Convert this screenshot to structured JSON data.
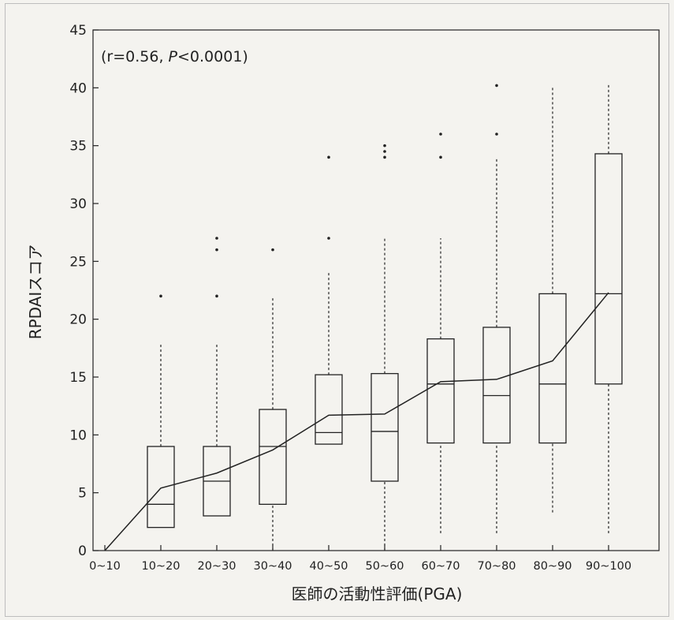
{
  "chart_data": {
    "type": "box",
    "xlabel": "医師の活動性評価(PGA)",
    "ylabel": "RPDAIスコア",
    "ylim": [
      0,
      45
    ],
    "yticks": [
      0,
      5,
      10,
      15,
      20,
      25,
      30,
      35,
      40,
      45
    ],
    "annotation": {
      "prefix": "(r=0.56, ",
      "p_symbol": "P",
      "suffix": "<0.0001)"
    },
    "categories": [
      "0~10",
      "10~20",
      "20~30",
      "30~40",
      "40~50",
      "50~60",
      "60~70",
      "70~80",
      "80~90",
      "90~100"
    ],
    "boxes": [
      null,
      {
        "whisker_low": 2,
        "q1": 2,
        "median": 4,
        "q3": 9,
        "whisker_high": 18,
        "outliers": [
          22
        ]
      },
      {
        "whisker_low": 3,
        "q1": 3,
        "median": 6,
        "q3": 9,
        "whisker_high": 18,
        "outliers": [
          22,
          26,
          27
        ]
      },
      {
        "whisker_low": 0,
        "q1": 4,
        "median": 9,
        "q3": 12.2,
        "whisker_high": 22,
        "outliers": [
          26
        ]
      },
      {
        "whisker_low": 9.2,
        "q1": 9.2,
        "median": 10.2,
        "q3": 15.2,
        "whisker_high": 24,
        "outliers": [
          27,
          34
        ]
      },
      {
        "whisker_low": 0,
        "q1": 6,
        "median": 10.3,
        "q3": 15.3,
        "whisker_high": 27,
        "outliers": [
          34,
          34.5,
          35
        ]
      },
      {
        "whisker_low": 1.5,
        "q1": 9.3,
        "median": 14.4,
        "q3": 18.3,
        "whisker_high": 27,
        "outliers": [
          34,
          36
        ]
      },
      {
        "whisker_low": 1.5,
        "q1": 9.3,
        "median": 13.4,
        "q3": 19.3,
        "whisker_high": 34,
        "outliers": [
          36,
          40.2
        ]
      },
      {
        "whisker_low": 3.3,
        "q1": 9.3,
        "median": 14.4,
        "q3": 22.2,
        "whisker_high": 40,
        "outliers": []
      },
      {
        "whisker_low": 1.5,
        "q1": 14.4,
        "median": 22.2,
        "q3": 34.3,
        "whisker_high": 40.3,
        "outliers": []
      }
    ],
    "mean_line": [
      0,
      5.4,
      6.7,
      8.7,
      11.7,
      11.8,
      14.6,
      14.8,
      16.4,
      22.3
    ],
    "grid": false,
    "legend": "none"
  }
}
